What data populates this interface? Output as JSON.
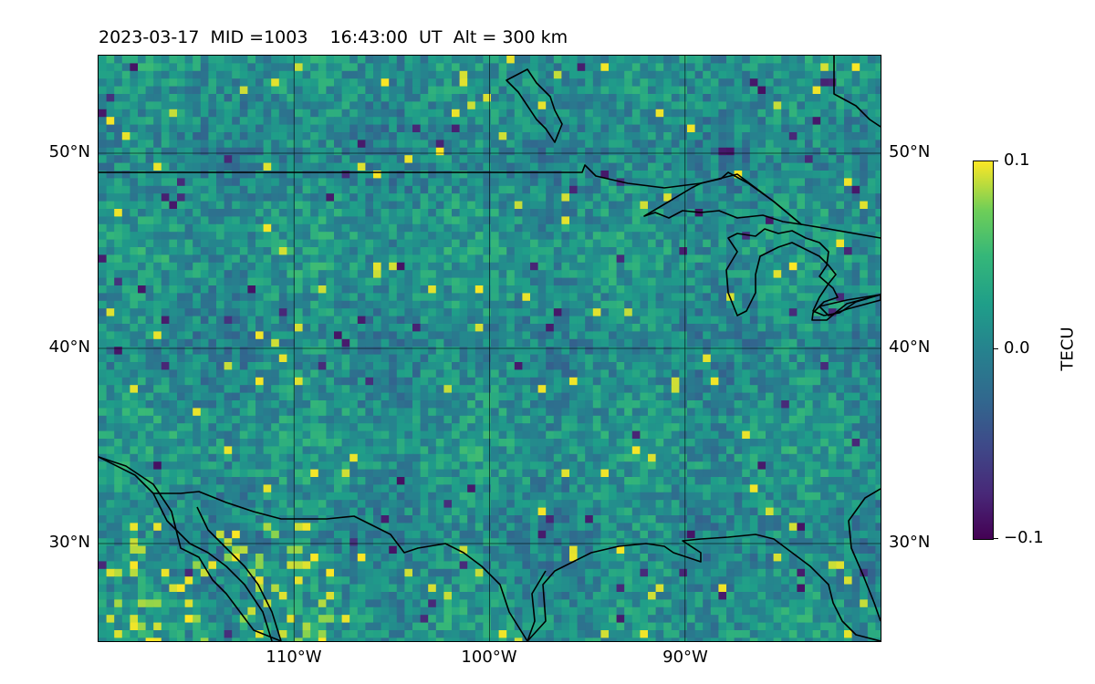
{
  "title": "2023-03-17  MID =1003    16:43:00  UT  Alt = 300 km",
  "map": {
    "lat_range": [
      25,
      55
    ],
    "lon_range": [
      -120,
      -80
    ],
    "lat_ticks": [
      {
        "value": 50,
        "label": "50°N"
      },
      {
        "value": 40,
        "label": "40°N"
      },
      {
        "value": 30,
        "label": "30°N"
      }
    ],
    "lon_ticks": [
      {
        "value": -110,
        "label": "110°W"
      },
      {
        "value": -100,
        "label": "100°W"
      },
      {
        "value": -90,
        "label": "90°W"
      }
    ],
    "grid": true,
    "colormap": "viridis"
  },
  "colorbar": {
    "label": "TECU",
    "min": -0.1,
    "max": 0.1,
    "ticks": [
      {
        "value": 0.1,
        "label": "0.1"
      },
      {
        "value": 0.0,
        "label": "0.0"
      },
      {
        "value": -0.1,
        "label": "−0.1"
      }
    ]
  }
}
